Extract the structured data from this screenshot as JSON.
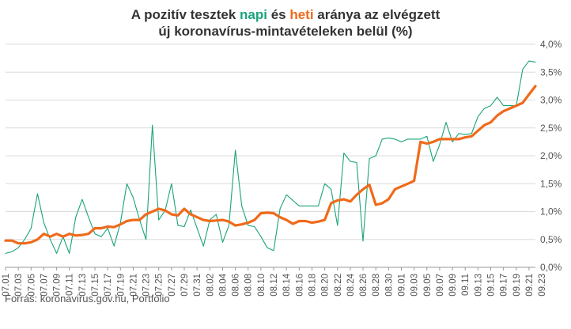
{
  "title": {
    "part1": "A pozitív tesztek ",
    "napi": "napi",
    "part2": " és ",
    "heti": "heti",
    "part3": " aránya az elvégzett",
    "line2": "új koronavírus-mintavételeken belül (%)"
  },
  "source": "Forrás: koronavirus.gov.hu, Portfolio",
  "colors": {
    "napi": "#1aa37a",
    "heti": "#ef6a1a",
    "grid": "#dcdcdc",
    "axis": "#999999"
  },
  "chart_data": {
    "type": "line",
    "title": "A pozitív tesztek napi és heti aránya az elvégzett új koronavírus-mintavételeken belül (%)",
    "xlabel": "",
    "ylabel": "",
    "ylim": [
      0,
      4.0
    ],
    "y_ticks": [
      "0,0%",
      "0,5%",
      "1,0%",
      "1,5%",
      "2,0%",
      "2,5%",
      "3,0%",
      "3,5%",
      "4,0%"
    ],
    "x_tick_labels": [
      "07.01",
      "07.03",
      "07.05",
      "07.07",
      "07.09",
      "07.11",
      "07.13",
      "07.15",
      "07.17",
      "07.19",
      "07.21",
      "07.23",
      "07.25",
      "07.27",
      "07.29",
      "07.31",
      "08.02",
      "08.04",
      "08.06",
      "08.08",
      "08.10",
      "08.12",
      "08.14",
      "08.16",
      "08.18",
      "08.20",
      "08.22",
      "08.24",
      "08.26",
      "08.28",
      "08.30",
      "09.01",
      "09.03",
      "09.05",
      "09.07",
      "09.09",
      "09.11",
      "09.13",
      "09.15",
      "09.17",
      "09.19",
      "09.21",
      "09.23"
    ],
    "grid": true,
    "series": [
      {
        "name": "napi",
        "color": "#1aa37a",
        "values": [
          0.25,
          0.28,
          0.35,
          0.5,
          0.7,
          1.32,
          0.8,
          0.5,
          0.25,
          0.55,
          0.25,
          0.9,
          1.22,
          0.9,
          0.6,
          0.55,
          0.7,
          0.38,
          0.8,
          1.5,
          1.25,
          0.85,
          0.5,
          2.55,
          0.85,
          1.02,
          1.5,
          0.75,
          0.73,
          1.03,
          0.7,
          0.38,
          0.85,
          0.95,
          0.45,
          0.75,
          2.1,
          1.1,
          0.75,
          0.73,
          0.55,
          0.35,
          0.3,
          1.05,
          1.3,
          1.2,
          1.1,
          1.1,
          1.1,
          1.1,
          1.5,
          1.4,
          0.75,
          2.05,
          1.9,
          1.88,
          0.47,
          1.95,
          2.0,
          2.3,
          2.32,
          2.3,
          2.25,
          2.3,
          2.3,
          2.3,
          2.35,
          1.9,
          2.2,
          2.6,
          2.25,
          2.4,
          2.38,
          2.4,
          2.7,
          2.85,
          2.9,
          3.05,
          2.9,
          2.9,
          2.9,
          3.55,
          3.7,
          3.68
        ]
      },
      {
        "name": "heti",
        "color": "#ef6a1a",
        "values": [
          0.48,
          0.48,
          0.43,
          0.43,
          0.45,
          0.5,
          0.6,
          0.55,
          0.6,
          0.55,
          0.6,
          0.57,
          0.58,
          0.6,
          0.7,
          0.7,
          0.73,
          0.72,
          0.77,
          0.83,
          0.85,
          0.85,
          0.95,
          1.0,
          1.05,
          1.02,
          0.95,
          0.93,
          1.05,
          0.95,
          0.9,
          0.85,
          0.83,
          0.84,
          0.85,
          0.82,
          0.75,
          0.77,
          0.8,
          0.85,
          0.97,
          0.98,
          0.97,
          0.9,
          0.85,
          0.78,
          0.83,
          0.83,
          0.8,
          0.82,
          0.85,
          1.15,
          1.2,
          1.22,
          1.18,
          1.3,
          1.4,
          1.48,
          1.12,
          1.15,
          1.22,
          1.4,
          1.45,
          1.5,
          1.55,
          2.25,
          2.22,
          2.25,
          2.3,
          2.3,
          2.3,
          2.3,
          2.33,
          2.35,
          2.45,
          2.55,
          2.6,
          2.72,
          2.8,
          2.85,
          2.9,
          2.95,
          3.1,
          3.25
        ]
      }
    ]
  }
}
